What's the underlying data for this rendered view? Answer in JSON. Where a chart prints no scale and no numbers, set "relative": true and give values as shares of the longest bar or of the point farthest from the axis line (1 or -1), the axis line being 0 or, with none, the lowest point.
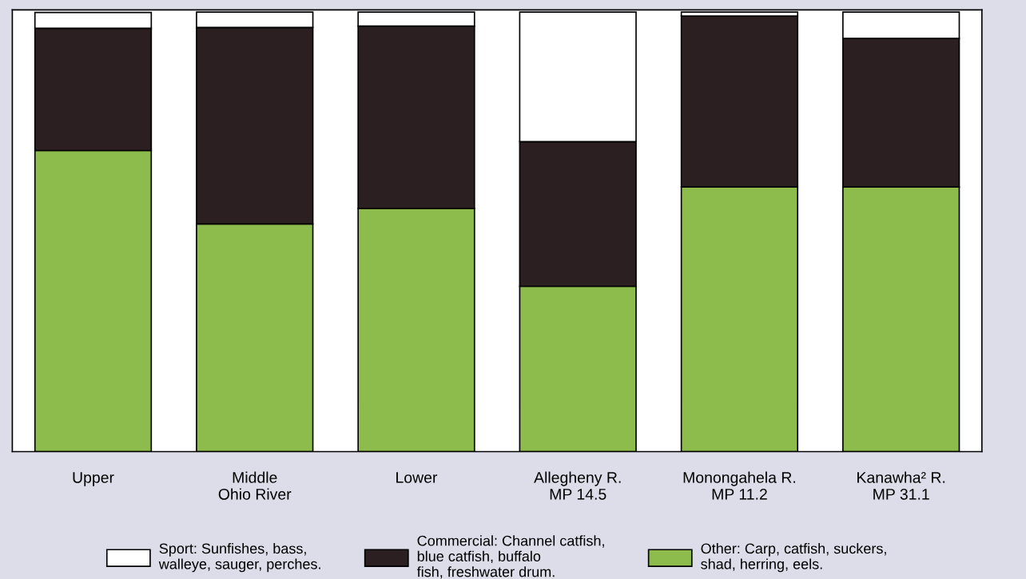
{
  "chart_data": {
    "type": "bar",
    "stacked": true,
    "relative": true,
    "legend": "bottom",
    "categories": [
      "Upper",
      "Middle\nOhio River",
      "Lower",
      "Allegheny R.\nMP 14.5",
      "Monongahela R.\nMP 11.2",
      "Kanawha² R.\nMP 31.1"
    ],
    "series": [
      {
        "name": "Other: Carp, catfish, suckers,\nshad, herring, eels.",
        "color": "#8dbb4c",
        "values": [
          0.685,
          0.518,
          0.553,
          0.376,
          0.602,
          0.602
        ]
      },
      {
        "name": "Commercial: Channel catfish,\nblue catfish, buffalo\nfish, freshwater drum.",
        "color": "#2b1f22",
        "values": [
          0.278,
          0.447,
          0.415,
          0.329,
          0.389,
          0.338
        ]
      },
      {
        "name": "Sport: Sunfishes, bass,\nwalleye, sauger, perches.",
        "color": "#ffffff",
        "values": [
          0.036,
          0.035,
          0.032,
          0.295,
          0.009,
          0.06
        ]
      }
    ]
  }
}
